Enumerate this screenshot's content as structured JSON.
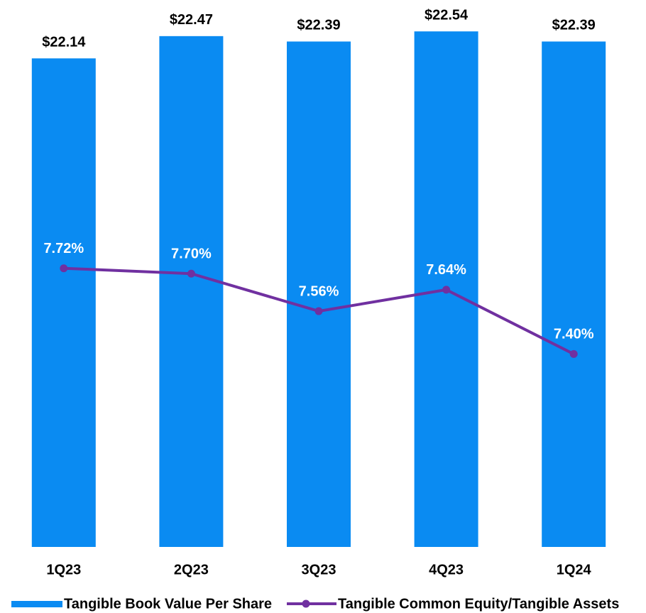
{
  "chart_data": {
    "type": "bar_line",
    "categories": [
      "1Q23",
      "2Q23",
      "3Q23",
      "4Q23",
      "1Q24"
    ],
    "series": [
      {
        "name": "Tangible Book Value Per Share",
        "type": "bar",
        "color": "#0a8bf2",
        "values": [
          22.14,
          22.47,
          22.39,
          22.54,
          22.39
        ],
        "value_labels": [
          "$22.14",
          "$22.47",
          "$22.39",
          "$22.54",
          "$22.39"
        ]
      },
      {
        "name": "Tangible Common Equity/Tangible Assets",
        "type": "line",
        "axis": "y2",
        "color": "#7030a0",
        "values": [
          7.72,
          7.7,
          7.56,
          7.64,
          7.4
        ],
        "value_labels": [
          "7.72%",
          "7.70%",
          "7.56%",
          "7.64%",
          "7.40%"
        ]
      }
    ],
    "ylim": [
      14.9,
      23
    ],
    "y2lim": [
      6.68,
      8.72
    ],
    "legend": "bottom"
  }
}
